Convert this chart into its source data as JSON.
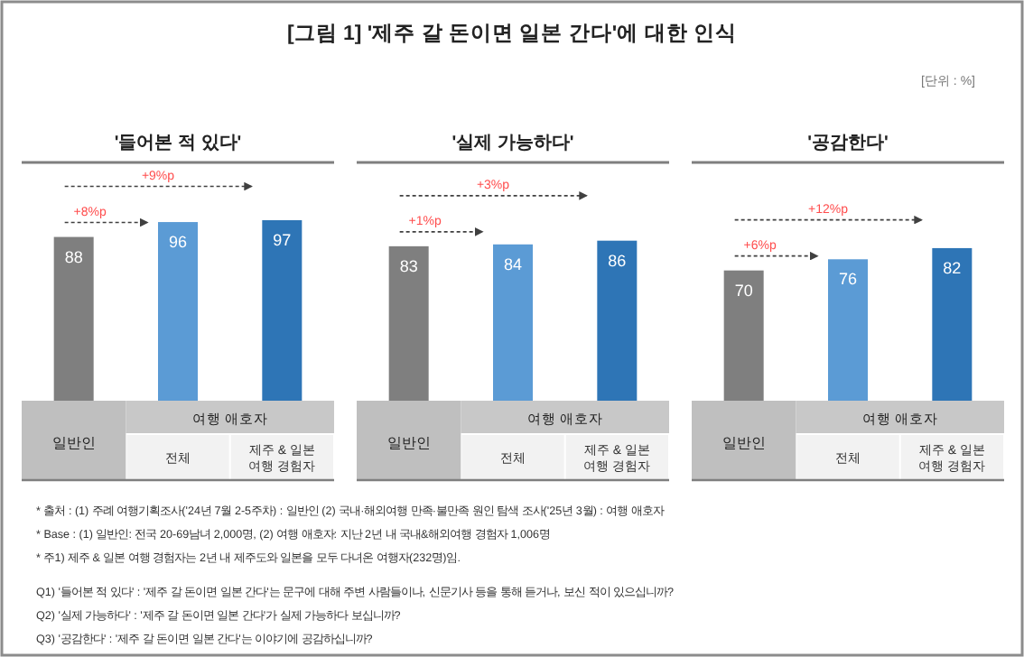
{
  "chart_data": [
    {
      "type": "other",
      "title": "[그림 1] '제주 갈 돈이면 일본 간다'에 대한 인식",
      "annotations": [
        "[단위 : %]"
      ]
    },
    {
      "type": "bar",
      "title": "'들어본 적 있다'",
      "categories": [
        "일반인",
        "전체",
        "제주 & 일본 여행 경험자"
      ],
      "values": [
        88,
        96,
        97
      ],
      "colors": [
        "#7f7f7f",
        "#5b9bd5",
        "#2e75b6"
      ],
      "data_labels": true,
      "annotations": [
        "여행 애호자",
        "+8%p",
        "+9%p"
      ]
    },
    {
      "type": "bar",
      "title": "'실제 가능하다'",
      "categories": [
        "일반인",
        "전체",
        "제주 & 일본 여행 경험자"
      ],
      "values": [
        83,
        84,
        86
      ],
      "colors": [
        "#7f7f7f",
        "#5b9bd5",
        "#2e75b6"
      ],
      "data_labels": true,
      "annotations": [
        "여행 애호자",
        "+1%p",
        "+3%p"
      ]
    },
    {
      "type": "bar",
      "title": "'공감한다'",
      "categories": [
        "일반인",
        "전체",
        "제주 & 일본 여행 경험자"
      ],
      "values": [
        70,
        76,
        82
      ],
      "colors": [
        "#7f7f7f",
        "#5b9bd5",
        "#2e75b6"
      ],
      "data_labels": true,
      "annotations": [
        "여행 애호자",
        "+6%p",
        "+12%p"
      ]
    },
    {
      "type": "other",
      "annotations": [
        "* 출처 : (1) 주례 여행기획조사('24년 7월 2-5주차) : 일반인 (2) 국내·해외여행 만족·불만족 원인 탐색 조사('25년 3월) : 여행 애호자",
        "* Base : (1) 일반인: 전국 20-69남녀 2,000명, (2) 여행 애호자: 지난 2년 내 국내&해외여행 경험자 1,006명",
        "* 주1) 제주 & 일본 여행 경험자는 2년 내 제주도와 일본을 모두 다녀온 여행자(232명)임.",
        "Q1) '들어본 적 있다' : '제주 갈 돈이면 일본 간다'는 문구에 대해 주변 사람들이나, 신문기사 등을 통해 듣거나, 보신 적이 있으십니까?",
        "Q2) '실제 가능하다' : '제주 갈 돈이면 일본 간다'가 실제 가능하다 보십니까?",
        "Q3) '공감한다' : '제주 갈 돈이면 일본 간다'는 이야기에 공감하십니까?"
      ]
    }
  ]
}
